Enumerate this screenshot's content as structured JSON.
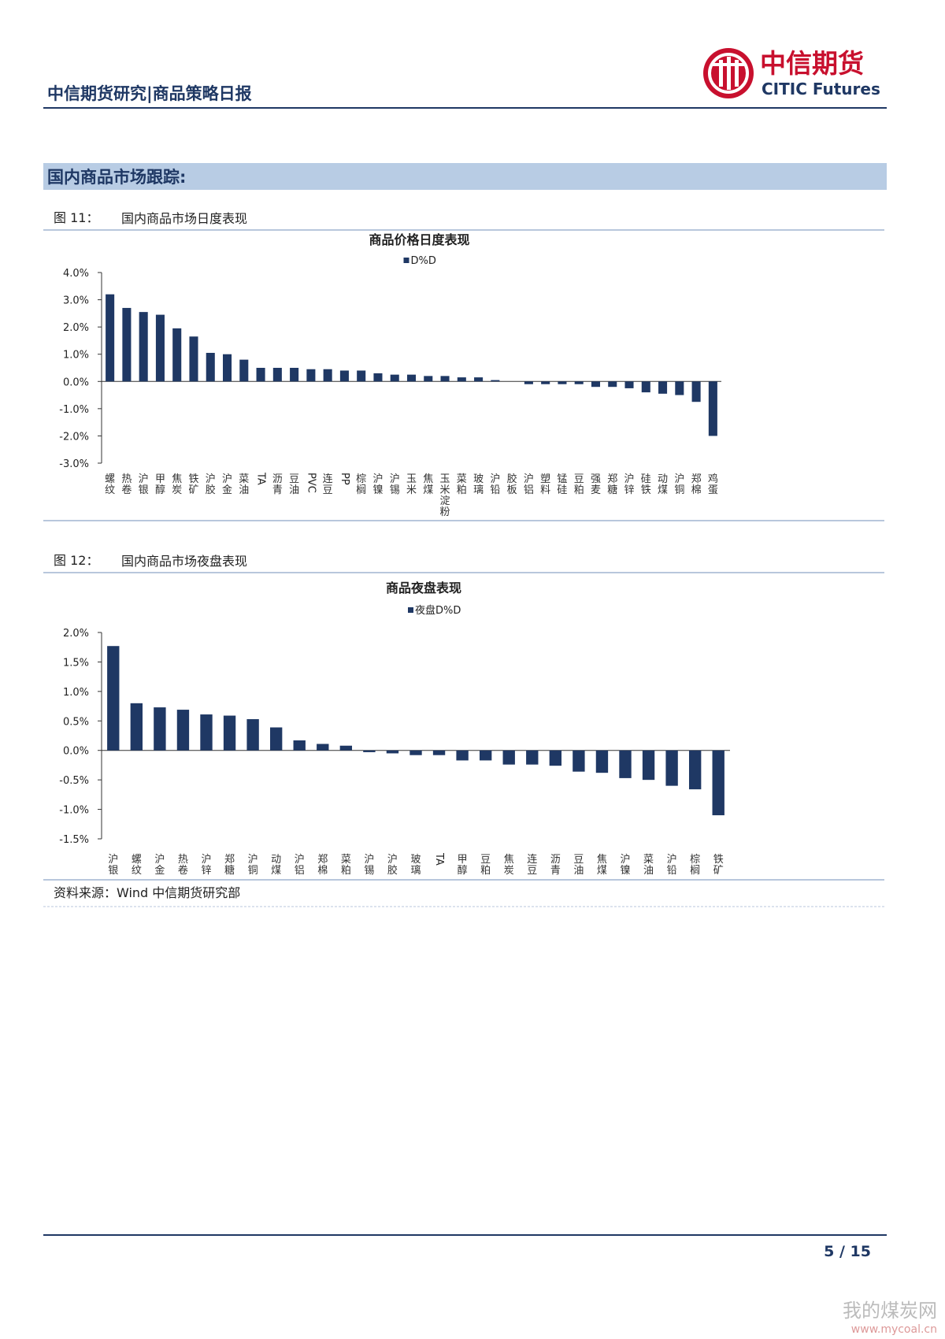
{
  "header": {
    "title": "中信期货研究|商品策略日报",
    "logo_cn": "中信期货",
    "logo_en": "CITIC Futures"
  },
  "section": "国内商品市场跟踪:",
  "figures": [
    {
      "number": "图 11：",
      "caption": "国内商品市场日度表现"
    },
    {
      "number": "图 12：",
      "caption": "国内商品市场夜盘表现"
    }
  ],
  "source": "资料来源：Wind  中信期货研究部",
  "page": "5 / 15",
  "watermark": {
    "name": "我的煤炭网",
    "url": "www.mycoal.cn"
  },
  "chart_data": [
    {
      "type": "bar",
      "title": "商品价格日度表现",
      "categories": [
        "螺纹",
        "热卷",
        "沪银",
        "甲醇",
        "焦炭",
        "铁矿",
        "沪胶",
        "沪金",
        "菜油",
        "TA",
        "沥青",
        "豆油",
        "PVC",
        "连豆",
        "PP",
        "棕榈",
        "沪镍",
        "沪锡",
        "玉米",
        "焦煤",
        "玉米淀粉",
        "菜粕",
        "玻璃",
        "沪铅",
        "胶板",
        "沪铝",
        "塑料",
        "锰硅",
        "豆粕",
        "强麦",
        "郑糖",
        "沪锌",
        "硅铁",
        "动煤",
        "沪铜",
        "郑棉",
        "鸡蛋"
      ],
      "series": [
        {
          "name": "D%D",
          "color": "#1f3864",
          "values": [
            3.2,
            2.7,
            2.55,
            2.45,
            1.95,
            1.65,
            1.05,
            1.0,
            0.8,
            0.5,
            0.5,
            0.5,
            0.45,
            0.45,
            0.4,
            0.4,
            0.3,
            0.25,
            0.25,
            0.2,
            0.2,
            0.15,
            0.15,
            0.05,
            0.0,
            -0.1,
            -0.1,
            -0.1,
            -0.1,
            -0.2,
            -0.2,
            -0.25,
            -0.4,
            -0.45,
            -0.5,
            -0.75,
            -2.0
          ]
        }
      ],
      "ylim": [
        -3,
        4
      ],
      "yticks": [
        {
          "value": 4,
          "label": "4.0%"
        },
        {
          "value": 3,
          "label": "3.0%"
        },
        {
          "value": 2,
          "label": "2.0%"
        },
        {
          "value": 1,
          "label": "1.0%"
        },
        {
          "value": 0,
          "label": "0.0%"
        },
        {
          "value": -1,
          "label": "-1.0%"
        },
        {
          "value": -2,
          "label": "-2.0%"
        },
        {
          "value": -3,
          "label": "-3.0%"
        }
      ],
      "legend": "top"
    },
    {
      "type": "bar",
      "title": "商品夜盘表现",
      "categories": [
        "沪银",
        "螺纹",
        "沪金",
        "热卷",
        "沪锌",
        "郑糖",
        "沪铜",
        "动煤",
        "沪铝",
        "郑棉",
        "菜粕",
        "沪锡",
        "沪胶",
        "玻璃",
        "TA",
        "甲醇",
        "豆粕",
        "焦炭",
        "连豆",
        "沥青",
        "豆油",
        "焦煤",
        "沪镍",
        "菜油",
        "沪铅",
        "棕榈",
        "铁矿"
      ],
      "series": [
        {
          "name": "夜盘D%D",
          "color": "#1f3864",
          "values": [
            1.77,
            0.8,
            0.73,
            0.69,
            0.61,
            0.59,
            0.53,
            0.39,
            0.17,
            0.11,
            0.08,
            -0.03,
            -0.05,
            -0.08,
            -0.08,
            -0.17,
            -0.17,
            -0.24,
            -0.24,
            -0.26,
            -0.36,
            -0.38,
            -0.47,
            -0.5,
            -0.6,
            -0.66,
            -1.1
          ]
        }
      ],
      "ylim": [
        -1.5,
        2
      ],
      "yticks": [
        {
          "value": 2,
          "label": "2.0%"
        },
        {
          "value": 1.5,
          "label": "1.5%"
        },
        {
          "value": 1,
          "label": "1.0%"
        },
        {
          "value": 0.5,
          "label": "0.5%"
        },
        {
          "value": 0,
          "label": "0.0%"
        },
        {
          "value": -0.5,
          "label": "-0.5%"
        },
        {
          "value": -1,
          "label": "-1.0%"
        },
        {
          "value": -1.5,
          "label": "-1.5%"
        }
      ],
      "legend": "top"
    }
  ]
}
